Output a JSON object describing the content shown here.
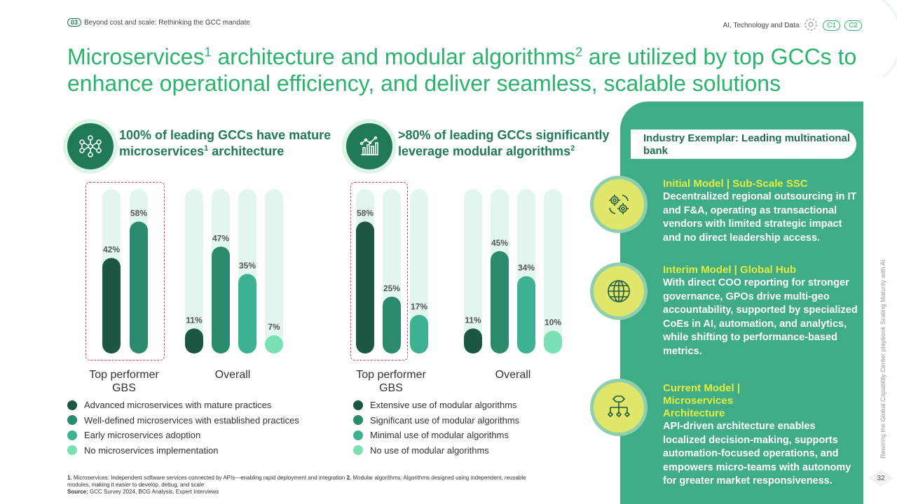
{
  "breadcrumb": {
    "number": "03",
    "text": "Beyond cost and scale: Rethinking the GCC mandate"
  },
  "top_right": {
    "section": "AI, Technology and Data",
    "pills": [
      "C1",
      "C2"
    ]
  },
  "title": {
    "part1": "Microservices",
    "sup1": "1",
    "part2": " architecture and modular algorithms",
    "sup2": "2",
    "part3": " are utilized by top GCCs to enhance operational efficiency, and deliver seamless, scalable solutions"
  },
  "left_header": {
    "line1": "100% of leading GCCs have mature",
    "line2": "microservices",
    "sup": "1",
    "line2b": " architecture",
    "icon": "network-nodes-icon"
  },
  "mid_header": {
    "line1": ">80% of leading GCCs significantly",
    "line2": "leverage modular algorithms",
    "sup": "2",
    "icon": "bar-chart-trend-icon"
  },
  "colors": {
    "c1": "#1c5744",
    "c2": "#2c8a6f",
    "c3": "#3db293",
    "c4": "#79e0b2",
    "track": "#e3f6ee",
    "accent": "#2bb36e"
  },
  "chart_data": [
    {
      "type": "bar",
      "groups": [
        "Top performer GBS",
        "Overall"
      ],
      "series": [
        {
          "name": "Advanced microservices with mature practices",
          "values": [
            42,
            11
          ]
        },
        {
          "name": "Well-defined microservices with established practices",
          "values": [
            58,
            47
          ]
        },
        {
          "name": "Early microservices adoption",
          "values": [
            null,
            35
          ]
        },
        {
          "name": "No microservices implementation",
          "values": [
            null,
            7
          ]
        }
      ],
      "unit": "%",
      "highlight": "Top performer GBS"
    },
    {
      "type": "bar",
      "groups": [
        "Top performer GBS",
        "Overall"
      ],
      "series": [
        {
          "name": "Extensive use of modular algorithms",
          "values": [
            58,
            11
          ]
        },
        {
          "name": "Significant use of modular algorithms",
          "values": [
            25,
            45
          ]
        },
        {
          "name": "Minimal use of modular algorithms",
          "values": [
            17,
            34
          ]
        },
        {
          "name": "No use of modular algorithms",
          "values": [
            null,
            10
          ]
        }
      ],
      "unit": "%",
      "highlight": "Top performer GBS"
    }
  ],
  "group_labels": {
    "top_line1": "Top performer",
    "top_line2": "GBS",
    "overall": "Overall"
  },
  "footnote": {
    "n1": "1.",
    "t1": " Microservices: Independent software services connected by APIs—enabling rapid deployment and integration ",
    "n2": "2.",
    "t2": " Modular algorithms: Algorithms designed using independent, reusable modules, making it easier to develop, debug, and scale",
    "source_label": "Source:",
    "source": " GCC Survey 2024, BCG Analysis, Expert Interviews"
  },
  "panel": {
    "header": "Industry Exemplar: Leading multinational bank",
    "models": [
      {
        "title": "Initial Model | Sub-Scale SSC",
        "body": "Decentralized regional outsourcing in IT and F&A, operating as transactional vendors with limited strategic impact and no direct leadership access.",
        "icon": "gears-cycle-icon"
      },
      {
        "title": "Interim Model | Global Hub",
        "body": "With direct COO reporting for stronger governance, GPOs drive multi-geo accountability, supported by specialized CoEs in AI, automation, and analytics, while shifting to performance-based metrics.",
        "icon": "globe-icon"
      },
      {
        "title": "Current Model | Microservices Architecture",
        "body": "API-driven architecture enables localized decision-making, supports automation-focused operations, and empowers micro-teams with autonomy for greater market responsiveness.",
        "icon": "hierarchy-icon"
      }
    ]
  },
  "side_text": "Rewiring the Global Capability Center playbook Scaling Maturity with AI",
  "page_number": "32"
}
